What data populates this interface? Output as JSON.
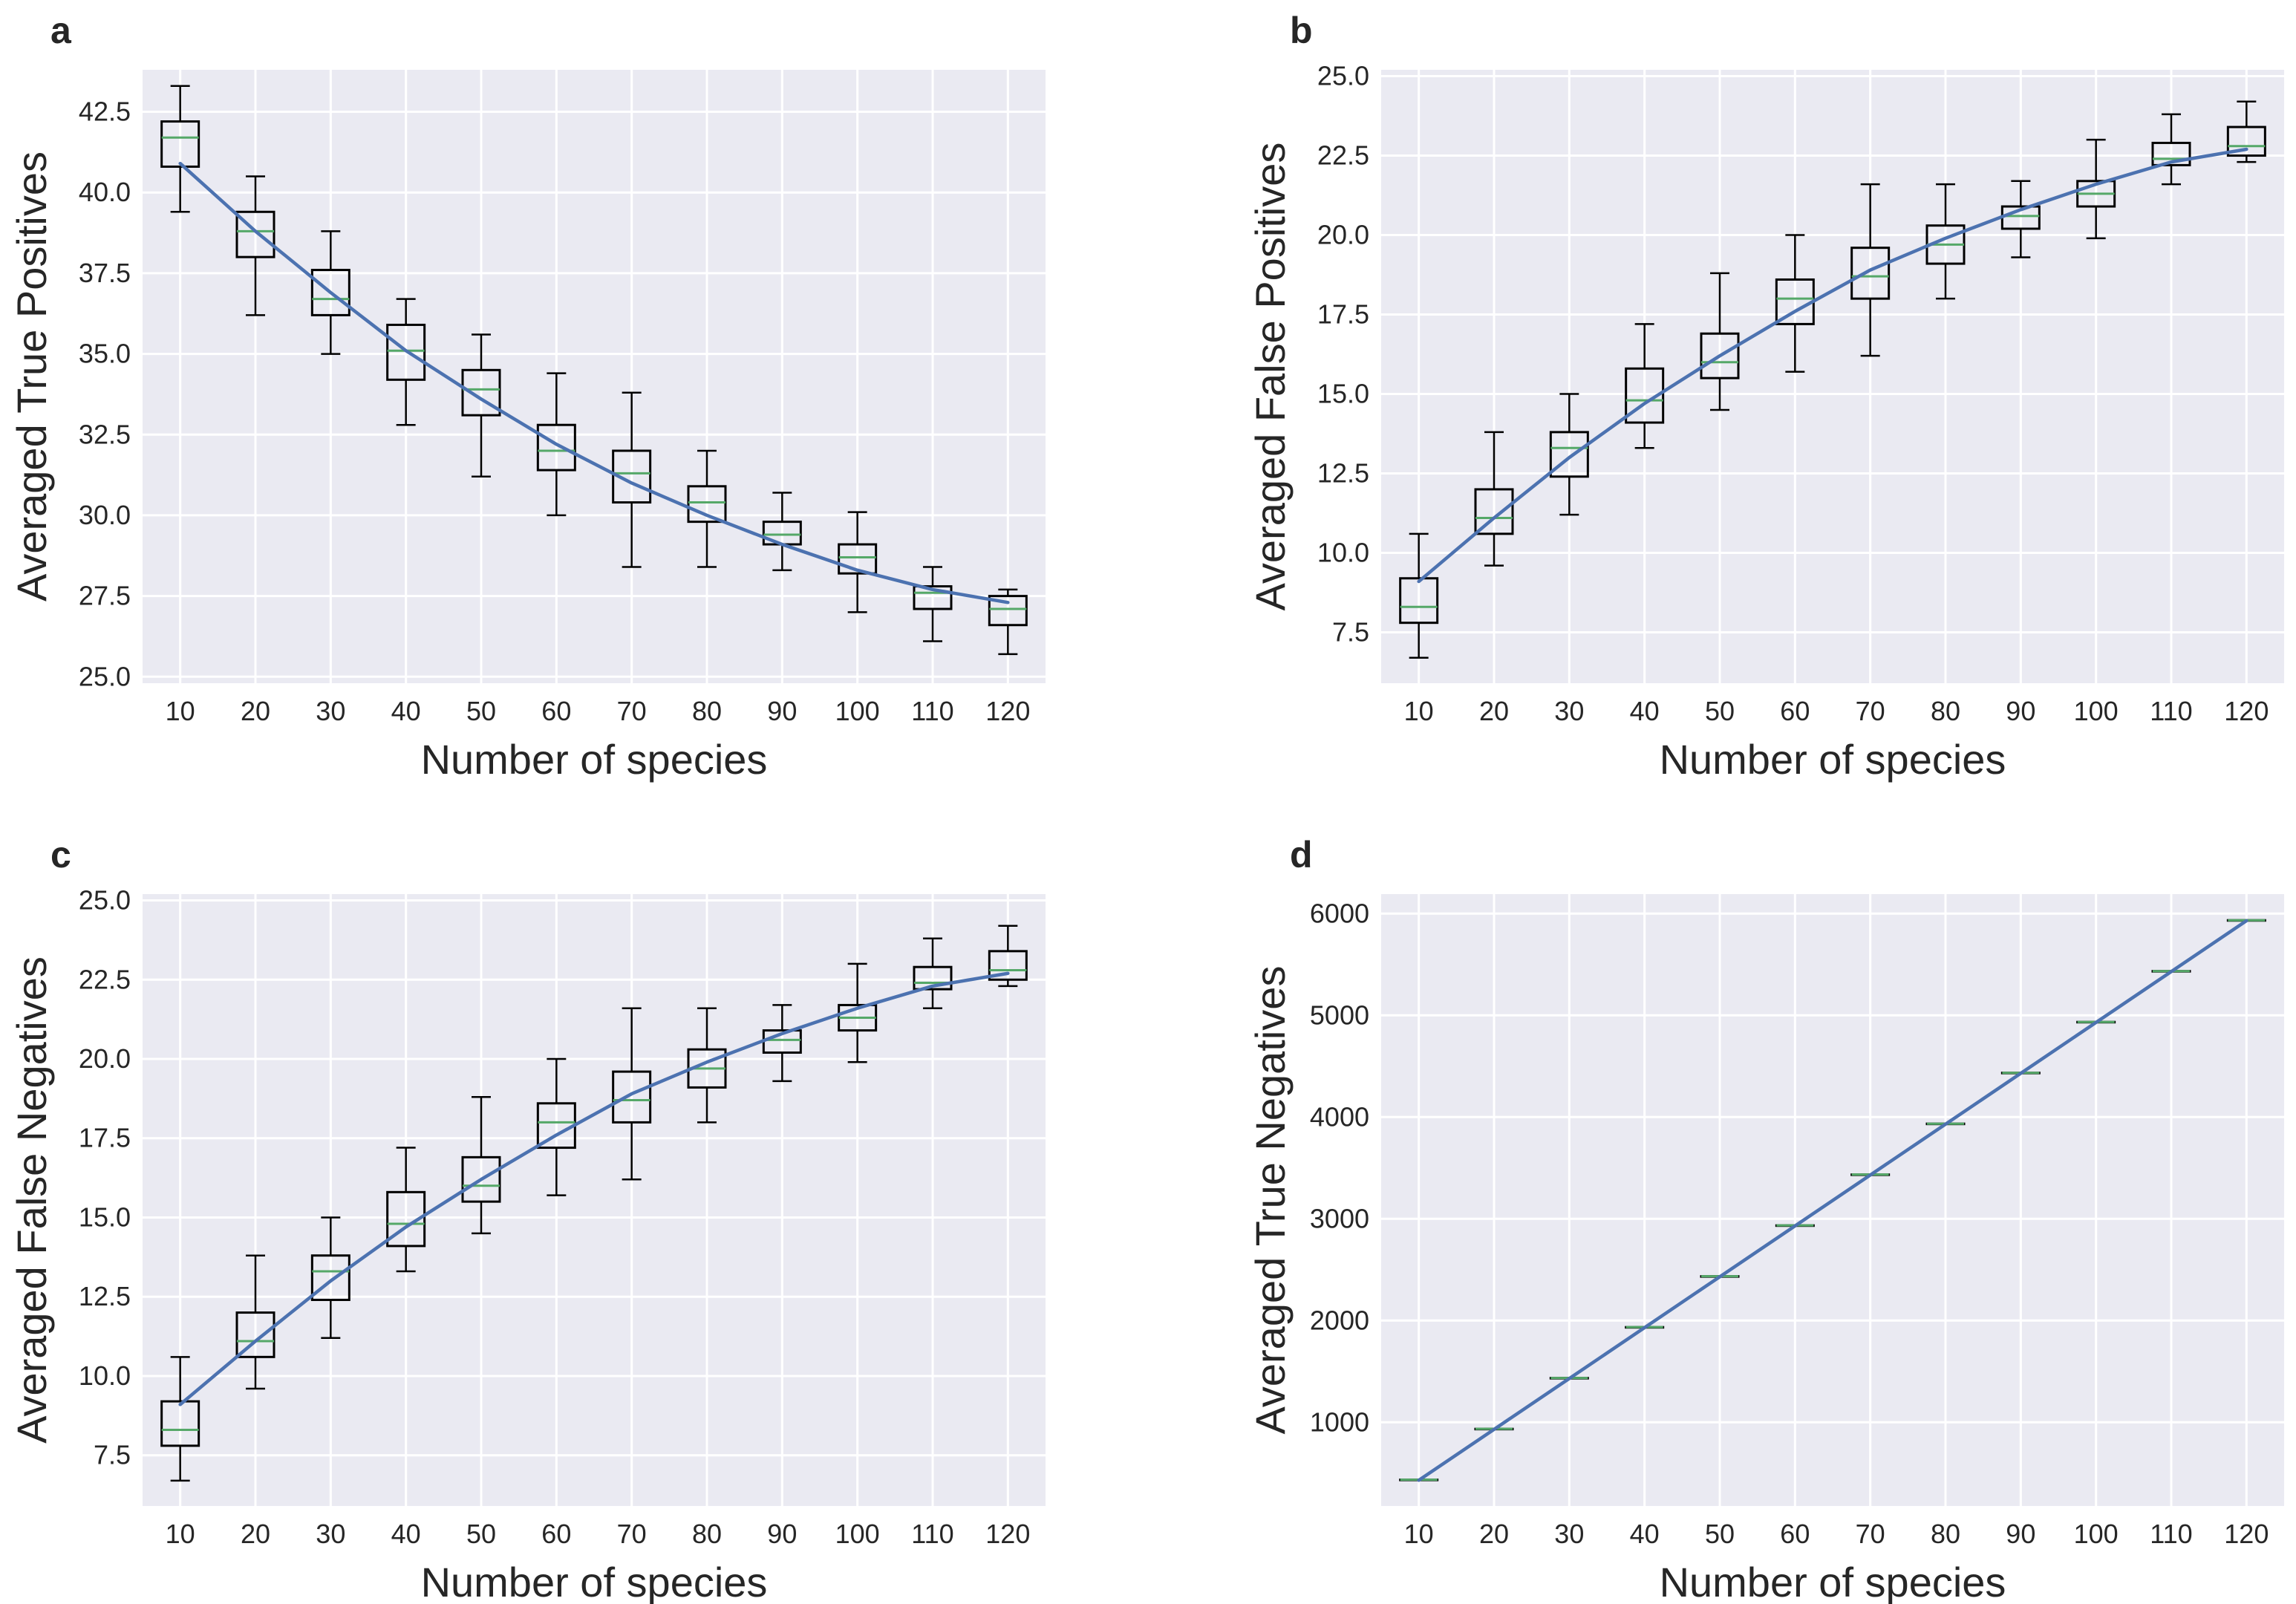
{
  "figure": {
    "background": "#ffffff",
    "axes_background": "#eaeaf2",
    "grid_color": "#ffffff"
  },
  "chart_data": [
    {
      "type": "box",
      "panel": "a",
      "xlabel": "Number of species",
      "ylabel": "Averaged True Positives",
      "categories": [
        "10",
        "20",
        "30",
        "40",
        "50",
        "60",
        "70",
        "80",
        "90",
        "100",
        "110",
        "120"
      ],
      "x": [
        10,
        20,
        30,
        40,
        50,
        60,
        70,
        80,
        90,
        100,
        110,
        120
      ],
      "ylim": [
        24.8,
        43.8
      ],
      "yticks": [
        25.0,
        27.5,
        30.0,
        32.5,
        35.0,
        37.5,
        40.0,
        42.5
      ],
      "ytick_labels": [
        "25.0",
        "27.5",
        "30.0",
        "32.5",
        "35.0",
        "37.5",
        "40.0",
        "42.5"
      ],
      "boxes": [
        {
          "whislo": 39.4,
          "q1": 40.8,
          "med": 41.7,
          "q3": 42.2,
          "whishi": 43.3
        },
        {
          "whislo": 36.2,
          "q1": 38.0,
          "med": 38.8,
          "q3": 39.4,
          "whishi": 40.5
        },
        {
          "whislo": 35.0,
          "q1": 36.2,
          "med": 36.7,
          "q3": 37.6,
          "whishi": 38.8
        },
        {
          "whislo": 32.8,
          "q1": 34.2,
          "med": 35.1,
          "q3": 35.9,
          "whishi": 36.7
        },
        {
          "whislo": 31.2,
          "q1": 33.1,
          "med": 33.9,
          "q3": 34.5,
          "whishi": 35.6
        },
        {
          "whislo": 30.0,
          "q1": 31.4,
          "med": 32.0,
          "q3": 32.8,
          "whishi": 34.4
        },
        {
          "whislo": 28.4,
          "q1": 30.4,
          "med": 31.3,
          "q3": 32.0,
          "whishi": 33.8
        },
        {
          "whislo": 28.4,
          "q1": 29.8,
          "med": 30.4,
          "q3": 30.9,
          "whishi": 32.0
        },
        {
          "whislo": 28.3,
          "q1": 29.1,
          "med": 29.4,
          "q3": 29.8,
          "whishi": 30.7
        },
        {
          "whislo": 27.0,
          "q1": 28.2,
          "med": 28.7,
          "q3": 29.1,
          "whishi": 30.1
        },
        {
          "whislo": 26.1,
          "q1": 27.1,
          "med": 27.6,
          "q3": 27.8,
          "whishi": 28.4
        },
        {
          "whislo": 25.7,
          "q1": 26.6,
          "med": 27.1,
          "q3": 27.5,
          "whishi": 27.7
        }
      ],
      "fit_line": [
        40.9,
        38.8,
        36.9,
        35.1,
        33.6,
        32.2,
        31.0,
        30.0,
        29.1,
        28.3,
        27.7,
        27.3
      ]
    },
    {
      "type": "box",
      "panel": "b",
      "xlabel": "Number of species",
      "ylabel": "Averaged False Positives",
      "categories": [
        "10",
        "20",
        "30",
        "40",
        "50",
        "60",
        "70",
        "80",
        "90",
        "100",
        "110",
        "120"
      ],
      "x": [
        10,
        20,
        30,
        40,
        50,
        60,
        70,
        80,
        90,
        100,
        110,
        120
      ],
      "ylim": [
        5.9,
        25.2
      ],
      "yticks": [
        7.5,
        10.0,
        12.5,
        15.0,
        17.5,
        20.0,
        22.5,
        25.0
      ],
      "ytick_labels": [
        "7.5",
        "10.0",
        "12.5",
        "15.0",
        "17.5",
        "20.0",
        "22.5",
        "25.0"
      ],
      "boxes": [
        {
          "whislo": 6.7,
          "q1": 7.8,
          "med": 8.3,
          "q3": 9.2,
          "whishi": 10.6
        },
        {
          "whislo": 9.6,
          "q1": 10.6,
          "med": 11.1,
          "q3": 12.0,
          "whishi": 13.8
        },
        {
          "whislo": 11.2,
          "q1": 12.4,
          "med": 13.3,
          "q3": 13.8,
          "whishi": 15.0
        },
        {
          "whislo": 13.3,
          "q1": 14.1,
          "med": 14.8,
          "q3": 15.8,
          "whishi": 17.2
        },
        {
          "whislo": 14.5,
          "q1": 15.5,
          "med": 16.0,
          "q3": 16.9,
          "whishi": 18.8
        },
        {
          "whislo": 15.7,
          "q1": 17.2,
          "med": 18.0,
          "q3": 18.6,
          "whishi": 20.0
        },
        {
          "whislo": 16.2,
          "q1": 18.0,
          "med": 18.7,
          "q3": 19.6,
          "whishi": 21.6
        },
        {
          "whislo": 18.0,
          "q1": 19.1,
          "med": 19.7,
          "q3": 20.3,
          "whishi": 21.6
        },
        {
          "whislo": 19.3,
          "q1": 20.2,
          "med": 20.6,
          "q3": 20.9,
          "whishi": 21.7
        },
        {
          "whislo": 19.9,
          "q1": 20.9,
          "med": 21.3,
          "q3": 21.7,
          "whishi": 23.0
        },
        {
          "whislo": 21.6,
          "q1": 22.2,
          "med": 22.4,
          "q3": 22.9,
          "whishi": 23.8
        },
        {
          "whislo": 22.3,
          "q1": 22.5,
          "med": 22.8,
          "q3": 23.4,
          "whishi": 24.2
        }
      ],
      "fit_line": [
        9.1,
        11.1,
        13.0,
        14.7,
        16.2,
        17.6,
        18.9,
        19.9,
        20.8,
        21.6,
        22.3,
        22.7
      ]
    },
    {
      "type": "box",
      "panel": "c",
      "xlabel": "Number of species",
      "ylabel": "Averaged False Negatives",
      "categories": [
        "10",
        "20",
        "30",
        "40",
        "50",
        "60",
        "70",
        "80",
        "90",
        "100",
        "110",
        "120"
      ],
      "x": [
        10,
        20,
        30,
        40,
        50,
        60,
        70,
        80,
        90,
        100,
        110,
        120
      ],
      "ylim": [
        5.9,
        25.2
      ],
      "yticks": [
        7.5,
        10.0,
        12.5,
        15.0,
        17.5,
        20.0,
        22.5,
        25.0
      ],
      "ytick_labels": [
        "7.5",
        "10.0",
        "12.5",
        "15.0",
        "17.5",
        "20.0",
        "22.5",
        "25.0"
      ],
      "boxes": [
        {
          "whislo": 6.7,
          "q1": 7.8,
          "med": 8.3,
          "q3": 9.2,
          "whishi": 10.6
        },
        {
          "whislo": 9.6,
          "q1": 10.6,
          "med": 11.1,
          "q3": 12.0,
          "whishi": 13.8
        },
        {
          "whislo": 11.2,
          "q1": 12.4,
          "med": 13.3,
          "q3": 13.8,
          "whishi": 15.0
        },
        {
          "whislo": 13.3,
          "q1": 14.1,
          "med": 14.8,
          "q3": 15.8,
          "whishi": 17.2
        },
        {
          "whislo": 14.5,
          "q1": 15.5,
          "med": 16.0,
          "q3": 16.9,
          "whishi": 18.8
        },
        {
          "whislo": 15.7,
          "q1": 17.2,
          "med": 18.0,
          "q3": 18.6,
          "whishi": 20.0
        },
        {
          "whislo": 16.2,
          "q1": 18.0,
          "med": 18.7,
          "q3": 19.6,
          "whishi": 21.6
        },
        {
          "whislo": 18.0,
          "q1": 19.1,
          "med": 19.7,
          "q3": 20.3,
          "whishi": 21.6
        },
        {
          "whislo": 19.3,
          "q1": 20.2,
          "med": 20.6,
          "q3": 20.9,
          "whishi": 21.7
        },
        {
          "whislo": 19.9,
          "q1": 20.9,
          "med": 21.3,
          "q3": 21.7,
          "whishi": 23.0
        },
        {
          "whislo": 21.6,
          "q1": 22.2,
          "med": 22.4,
          "q3": 22.9,
          "whishi": 23.8
        },
        {
          "whislo": 22.3,
          "q1": 22.5,
          "med": 22.8,
          "q3": 23.4,
          "whishi": 24.2
        }
      ],
      "fit_line": [
        9.1,
        11.1,
        13.0,
        14.7,
        16.2,
        17.6,
        18.9,
        19.9,
        20.8,
        21.6,
        22.3,
        22.7
      ]
    },
    {
      "type": "box",
      "panel": "d",
      "xlabel": "Number of species",
      "ylabel": "Averaged True Negatives",
      "categories": [
        "10",
        "20",
        "30",
        "40",
        "50",
        "60",
        "70",
        "80",
        "90",
        "100",
        "110",
        "120"
      ],
      "x": [
        10,
        20,
        30,
        40,
        50,
        60,
        70,
        80,
        90,
        100,
        110,
        120
      ],
      "ylim": [
        177,
        6192
      ],
      "yticks": [
        1000,
        2000,
        3000,
        4000,
        5000,
        6000
      ],
      "ytick_labels": [
        "1000",
        "2000",
        "3000",
        "4000",
        "5000",
        "6000"
      ],
      "boxes": [
        {
          "whislo": 435,
          "q1": 435,
          "med": 435,
          "q3": 435,
          "whishi": 435
        },
        {
          "whislo": 935,
          "q1": 935,
          "med": 935,
          "q3": 935,
          "whishi": 935
        },
        {
          "whislo": 1435,
          "q1": 1435,
          "med": 1435,
          "q3": 1435,
          "whishi": 1435
        },
        {
          "whislo": 1935,
          "q1": 1935,
          "med": 1935,
          "q3": 1935,
          "whishi": 1935
        },
        {
          "whislo": 2435,
          "q1": 2435,
          "med": 2435,
          "q3": 2435,
          "whishi": 2435
        },
        {
          "whislo": 2935,
          "q1": 2935,
          "med": 2935,
          "q3": 2935,
          "whishi": 2935
        },
        {
          "whislo": 3435,
          "q1": 3435,
          "med": 3435,
          "q3": 3435,
          "whishi": 3435
        },
        {
          "whislo": 3935,
          "q1": 3935,
          "med": 3935,
          "q3": 3935,
          "whishi": 3935
        },
        {
          "whislo": 4435,
          "q1": 4435,
          "med": 4435,
          "q3": 4435,
          "whishi": 4435
        },
        {
          "whislo": 4935,
          "q1": 4935,
          "med": 4935,
          "q3": 4935,
          "whishi": 4935
        },
        {
          "whislo": 5435,
          "q1": 5435,
          "med": 5435,
          "q3": 5435,
          "whishi": 5435
        },
        {
          "whislo": 5935,
          "q1": 5935,
          "med": 5935,
          "q3": 5935,
          "whishi": 5935
        }
      ],
      "fit_line": [
        430,
        930,
        1430,
        1930,
        2430,
        2930,
        3430,
        3930,
        4430,
        4930,
        5430,
        5930
      ]
    }
  ],
  "style": {
    "box_edge": "#000000",
    "median_color": "#55a868",
    "fit_color": "#4c72b0"
  }
}
